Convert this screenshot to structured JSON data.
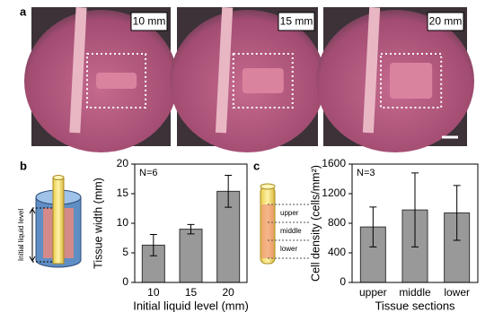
{
  "panel_labels": [
    "a",
    "b",
    "c"
  ],
  "photo_labels": [
    "10 mm",
    "15 mm",
    "20 mm"
  ],
  "diagram_b": {
    "label": "Initial liquid level"
  },
  "diagram_c": {
    "sections": [
      "upper",
      "middle",
      "lower"
    ]
  },
  "chart_data": [
    {
      "type": "bar",
      "annotation": "N=6",
      "x_label": "Initial liquid level (mm)",
      "y_label": "Tissue width (mm)",
      "categories": [
        "10",
        "15",
        "20"
      ],
      "values": [
        6.3,
        9.0,
        15.4
      ],
      "errors": [
        1.8,
        0.8,
        2.7
      ],
      "color": "#999999",
      "ylim": [
        0,
        20
      ],
      "yticks": [
        0,
        5,
        10,
        15,
        20
      ]
    },
    {
      "type": "bar",
      "annotation": "N=3",
      "x_label": "Tissue sections",
      "y_label": "Cell density (cells/mm²)",
      "categories": [
        "upper",
        "middle",
        "lower"
      ],
      "values": [
        750,
        980,
        940
      ],
      "errors": [
        270,
        500,
        370
      ],
      "color": "#999999",
      "ylim": [
        0,
        1600
      ],
      "yticks": [
        0,
        400,
        800,
        1200,
        1600
      ]
    }
  ]
}
